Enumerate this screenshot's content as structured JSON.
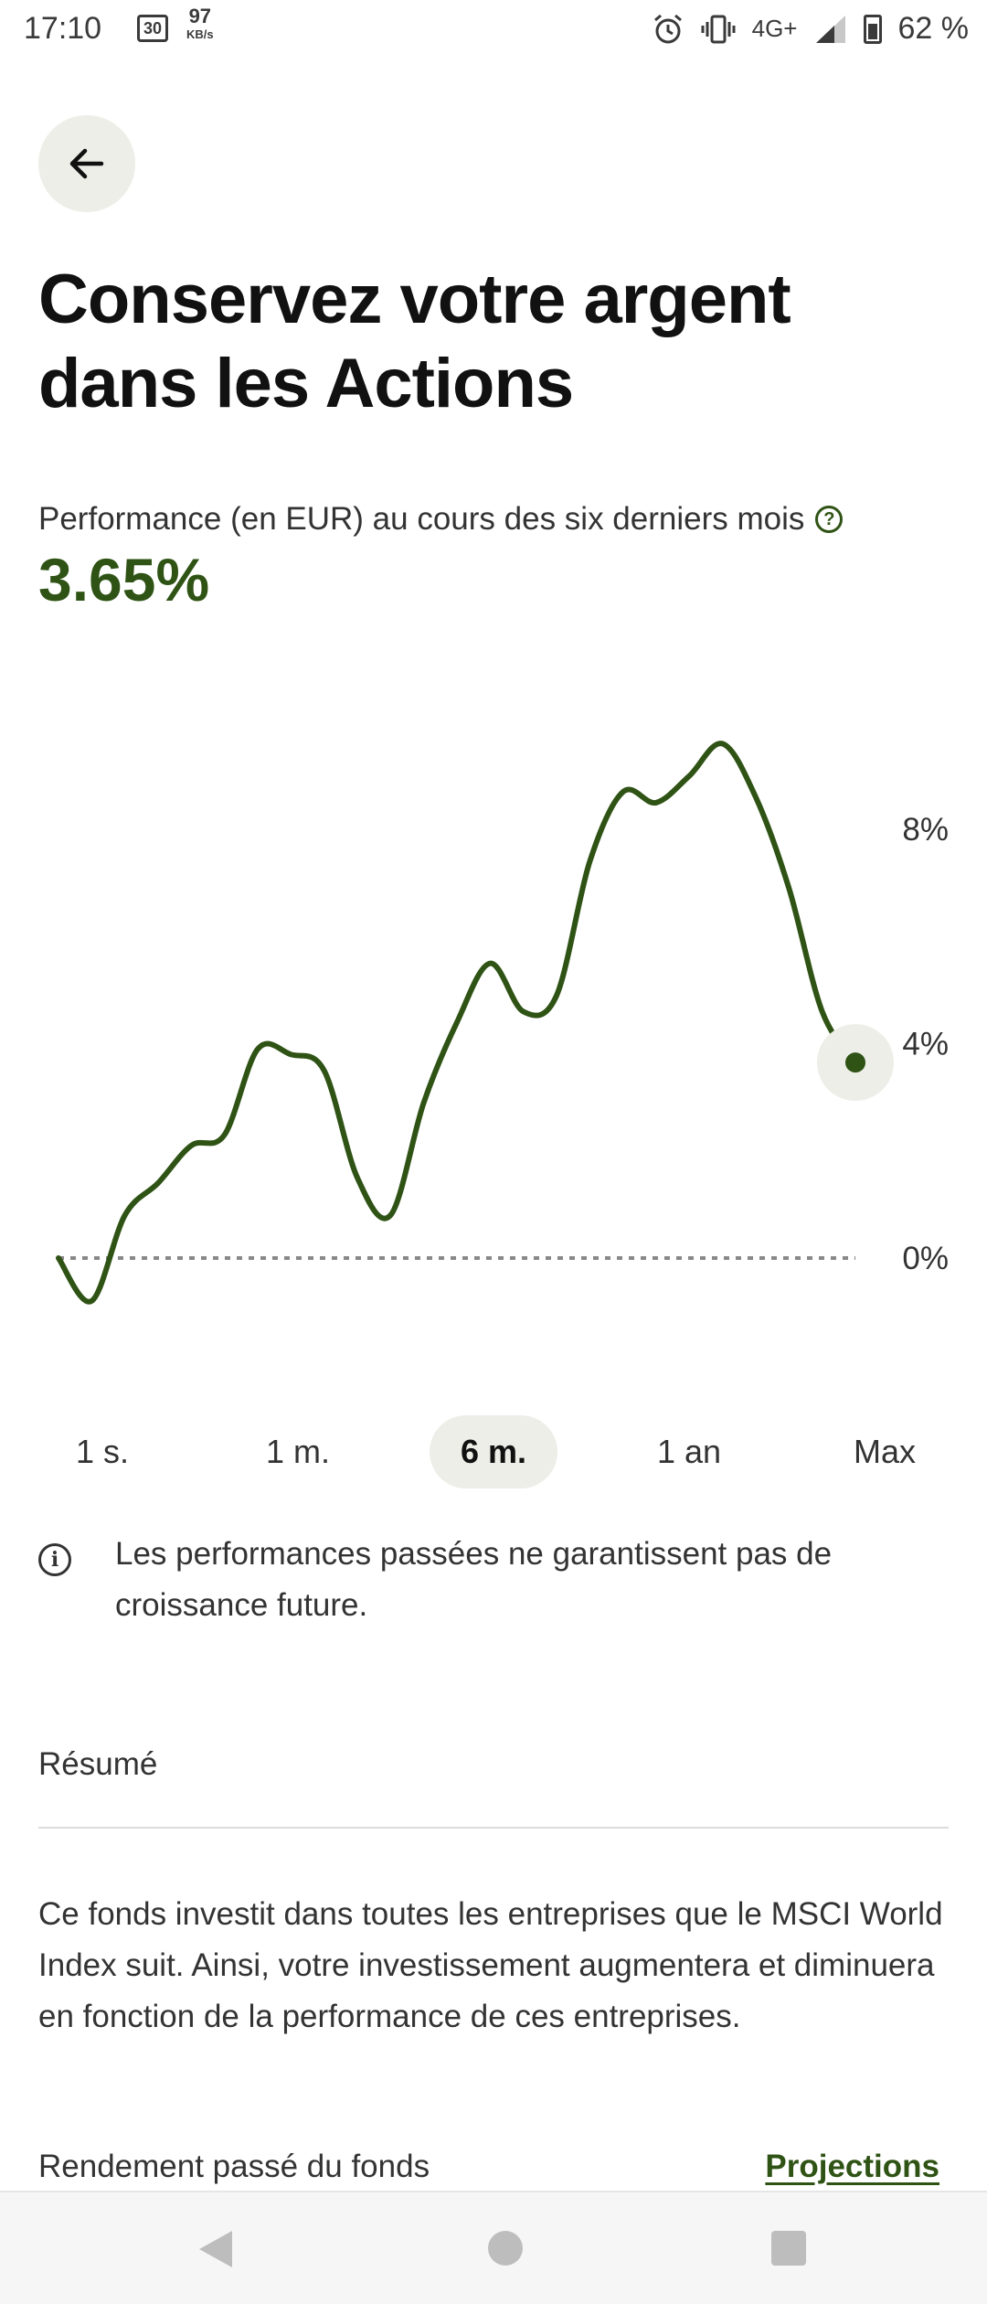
{
  "status_bar": {
    "time": "17:10",
    "calendar_day": "30",
    "net_speed": "97",
    "net_speed_unit": "KB/s",
    "network": "4G+",
    "battery": "62 %"
  },
  "header": {
    "title": "Conservez votre argent dans les Actions"
  },
  "performance": {
    "label": "Performance (en EUR) au cours des six derniers mois",
    "value": "3.65%",
    "help_icon": "question-circle-icon"
  },
  "chart_data": {
    "type": "line",
    "title": "",
    "xlabel": "",
    "ylabel": "",
    "y_ticks": [
      "8%",
      "4%",
      "0%"
    ],
    "y_tick_values": [
      8,
      4,
      0
    ],
    "ylim": [
      -1,
      10
    ],
    "line_color": "#2f5315",
    "grid": false,
    "baseline": 0,
    "series": [
      {
        "values": [
          0,
          -0.8,
          0.8,
          1.4,
          2.1,
          2.3,
          3.9,
          3.8,
          3.5,
          1.5,
          0.8,
          2.9,
          4.4,
          5.5,
          4.6,
          4.9,
          7.4,
          8.7,
          8.5,
          9.0,
          9.6,
          8.6,
          6.9,
          4.6,
          3.65
        ]
      }
    ]
  },
  "period_tabs": [
    {
      "label": "1 s.",
      "active": false
    },
    {
      "label": "1 m.",
      "active": false
    },
    {
      "label": "6 m.",
      "active": true
    },
    {
      "label": "1 an",
      "active": false
    },
    {
      "label": "Max",
      "active": false
    }
  ],
  "disclaimer": {
    "text": "Les performances passées ne garantissent pas de croissance future."
  },
  "summary": {
    "title": "Résumé",
    "text": "Ce fonds investit dans toutes les entreprises que le MSCI World Index suit. Ainsi, votre investissement augmentera et diminuera en fonction de la performance de ces entreprises."
  },
  "returns": {
    "label": "Rendement passé du fonds",
    "link": "Projections"
  },
  "colors": {
    "accent": "#2f5315",
    "pill_background": "#eceee7"
  }
}
